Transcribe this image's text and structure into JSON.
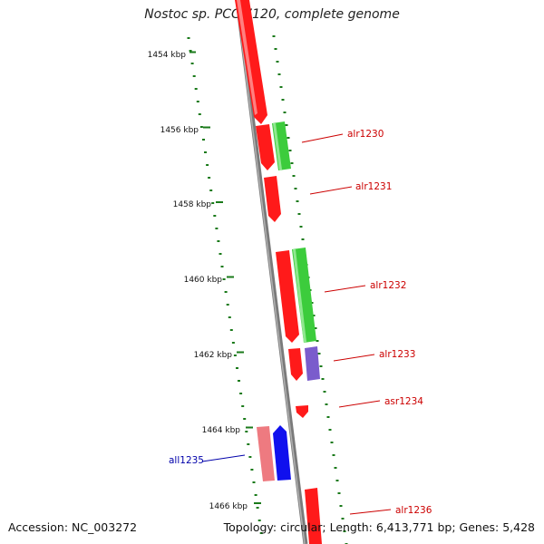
{
  "title": "Nostoc sp. PCC 7120, complete genome",
  "footer": {
    "accession": "Accession: NC_003272",
    "summary": "Topology: circular; Length: 6,413,771 bp; Genes: 5,428"
  },
  "colors": {
    "forward_red": "#ff1a1a",
    "green": "#3ccc3c",
    "purple": "#7a5ccc",
    "reverse_blue": "#1010ee",
    "reverse_pink": "#ee7a80",
    "axis_gray": "#8a8a8a",
    "tick_green": "#1a7a1a",
    "label_red": "#cc0000",
    "label_blue": "#0000aa"
  },
  "ticks": [
    "1454 kbp",
    "1456 kbp",
    "1458 kbp",
    "1460 kbp",
    "1462 kbp",
    "1464 kbp",
    "1466 kbp"
  ],
  "genes": [
    {
      "name": "alr1230",
      "strand": "forward",
      "color_key": "label_red"
    },
    {
      "name": "alr1231",
      "strand": "forward",
      "color_key": "label_red"
    },
    {
      "name": "alr1232",
      "strand": "forward",
      "color_key": "label_red"
    },
    {
      "name": "alr1233",
      "strand": "forward",
      "color_key": "label_red"
    },
    {
      "name": "asr1234",
      "strand": "forward",
      "color_key": "label_red"
    },
    {
      "name": "all1235",
      "strand": "reverse",
      "color_key": "label_blue"
    },
    {
      "name": "alr1236",
      "strand": "forward",
      "color_key": "label_red"
    }
  ]
}
